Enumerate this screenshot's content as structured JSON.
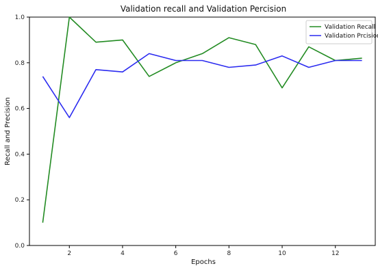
{
  "chart_data": {
    "type": "line",
    "title": "Validation recall and Validation Percision",
    "xlabel": "Epochs",
    "ylabel": "Recall and Precision",
    "x": [
      1,
      2,
      3,
      4,
      5,
      6,
      7,
      8,
      9,
      10,
      11,
      12,
      13
    ],
    "xlim": [
      0.5,
      13.5
    ],
    "ylim": [
      0.0,
      1.0
    ],
    "xticks": [
      2,
      4,
      6,
      8,
      10,
      12
    ],
    "yticks": [
      0.0,
      0.2,
      0.4,
      0.6,
      0.8,
      1.0
    ],
    "ytick_labels": [
      "0.0",
      "0.2",
      "0.4",
      "0.6",
      "0.8",
      "1.0"
    ],
    "grid": false,
    "legend_position": "top-right",
    "series": [
      {
        "name": "Validation Recall",
        "color": "#228b22",
        "values": [
          0.1,
          1.0,
          0.89,
          0.9,
          0.74,
          0.8,
          0.84,
          0.91,
          0.88,
          0.69,
          0.87,
          0.81,
          0.82
        ]
      },
      {
        "name": "Validation Prcision",
        "color": "#2a2af0",
        "values": [
          0.74,
          0.56,
          0.77,
          0.76,
          0.84,
          0.81,
          0.81,
          0.78,
          0.79,
          0.83,
          0.78,
          0.81,
          0.81
        ]
      }
    ]
  }
}
